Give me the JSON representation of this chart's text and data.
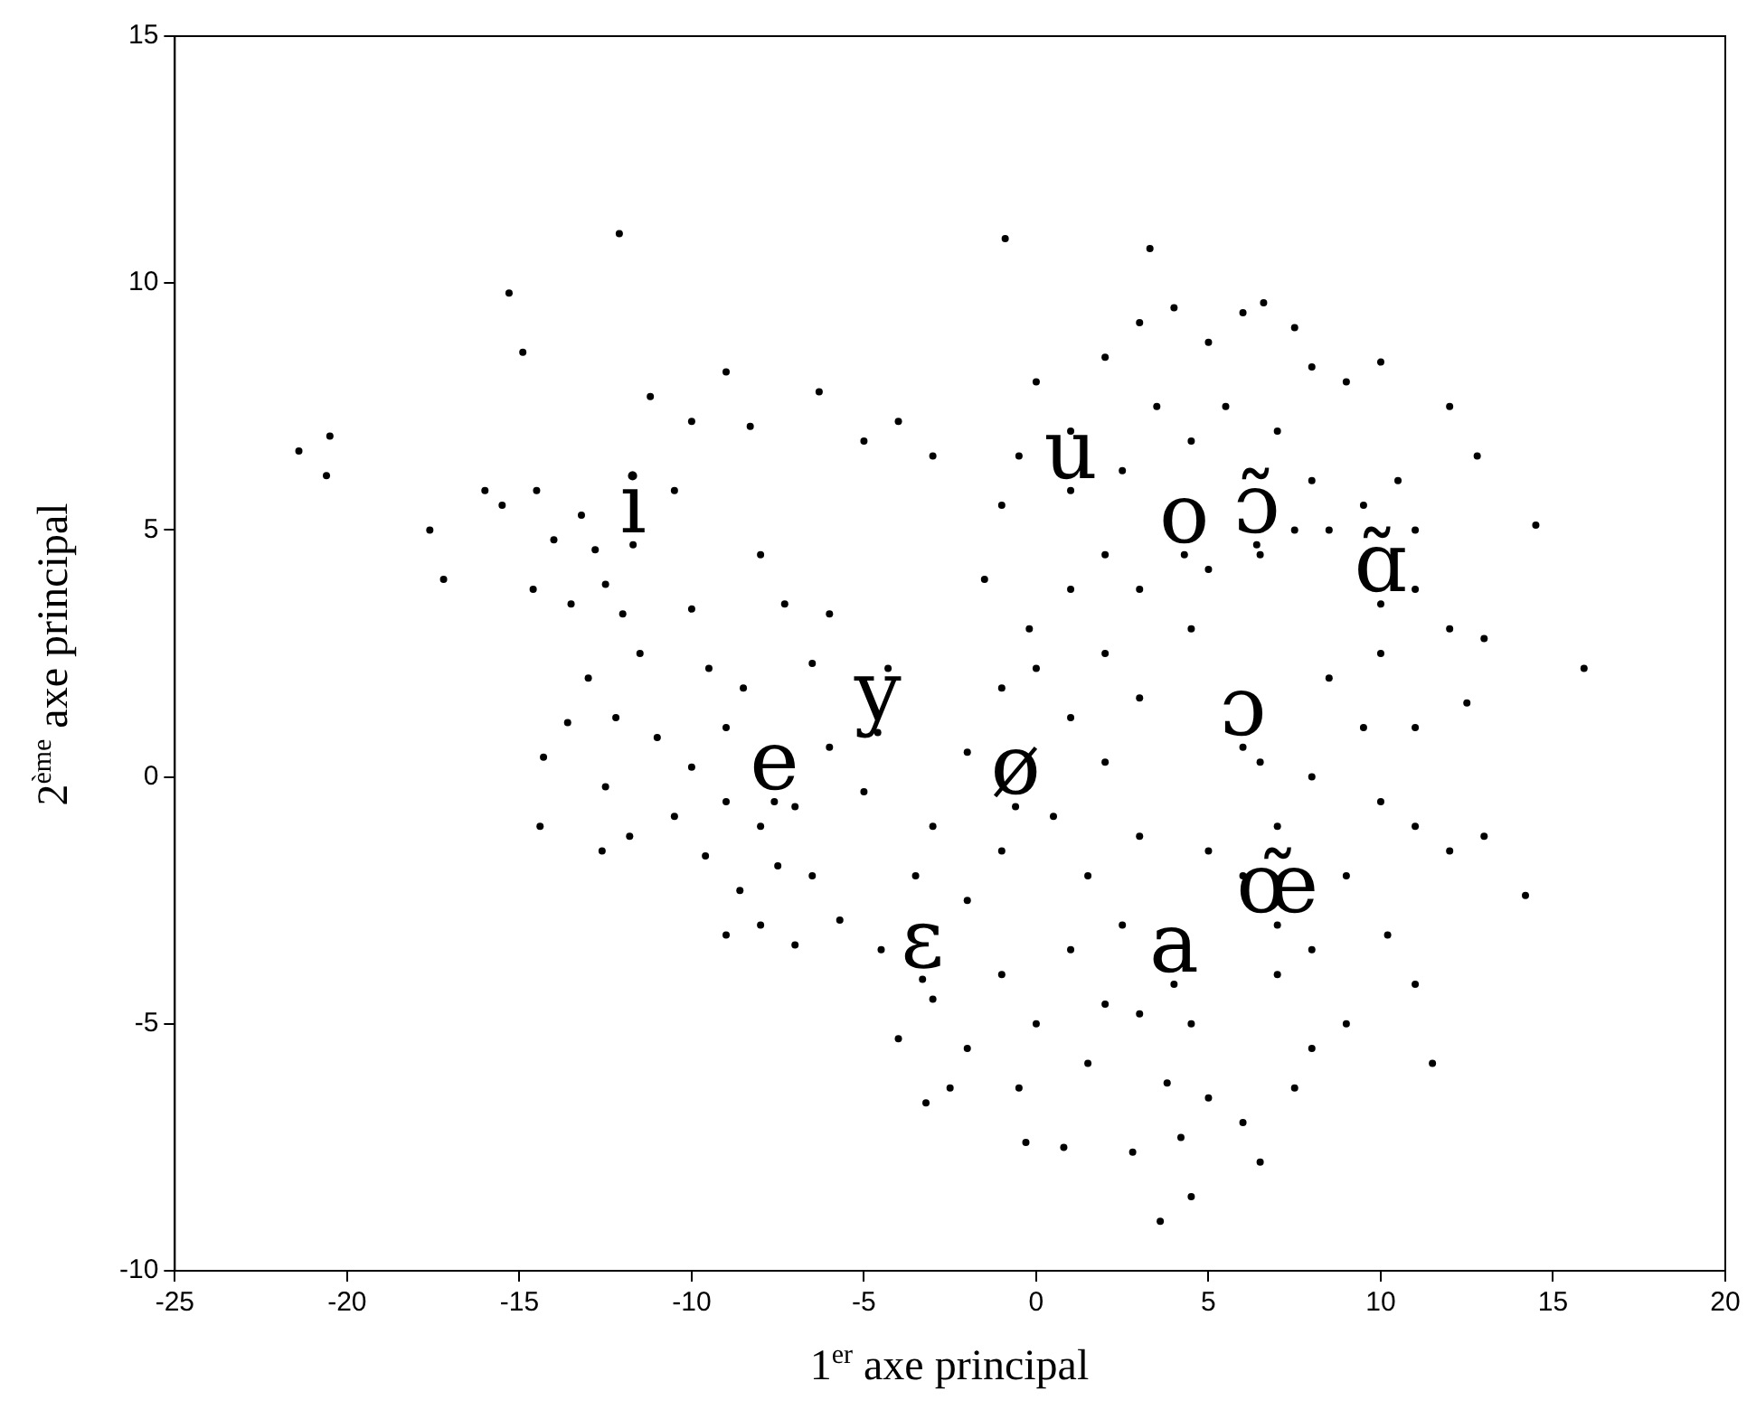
{
  "chart_data": {
    "type": "scatter",
    "xlabel": "1$^{er}$ axe principal",
    "ylabel": "2$^{ème}$ axe principal",
    "xlim": [
      -25,
      20
    ],
    "ylim": [
      -10,
      15
    ],
    "xticks": [
      -25,
      -20,
      -15,
      -10,
      -5,
      0,
      5,
      10,
      15,
      20
    ],
    "yticks": [
      -10,
      -5,
      0,
      5,
      10,
      15
    ],
    "grid": false,
    "legend": false,
    "marker": "circle",
    "series": [
      {
        "color": "#000000",
        "x": [
          -21.4,
          -20.5,
          -20.6,
          -17.6,
          -17.2,
          -12.1,
          -15.3,
          -14.9,
          -0.9,
          3.3,
          -14.4,
          -14.3,
          -16,
          -15.5,
          -14.5,
          -14,
          -13.2,
          -12.8,
          -12.5,
          -13.5,
          -14.6,
          -12,
          -11.5,
          -13,
          -12.2,
          -13.6,
          -11,
          -12.5,
          -11.8,
          -12.6,
          -10.5,
          -10,
          -11.2,
          -9,
          -8.3,
          -6.3,
          -5,
          -4,
          -3,
          -10,
          -9.5,
          -9,
          -8.5,
          -10,
          -9,
          -8,
          -7,
          -7.5,
          -8.6,
          -6.5,
          -9.6,
          -10.5,
          -6,
          -5,
          -6.5,
          -7.3,
          -8,
          -6,
          -4.3,
          -5.7,
          -7,
          -8,
          -9,
          -3,
          -2,
          -1,
          0,
          1,
          2,
          3,
          -3.5,
          -2,
          -1,
          0.5,
          1.5,
          3,
          -3,
          -2,
          -1,
          0,
          -0.5,
          1,
          2,
          -4,
          -2.5,
          1.5,
          2.5,
          3,
          3.8,
          4.2,
          2.8,
          0.8,
          -0.3,
          4.5,
          5,
          6,
          6.5,
          3.6,
          4.5,
          -4.5,
          -3.2,
          -1.5,
          -1,
          -0.5,
          0,
          1,
          2,
          3,
          4,
          5,
          6,
          6.6,
          7.5,
          8,
          9,
          10,
          2.5,
          3.5,
          4.5,
          5.5,
          7,
          8,
          7.5,
          2,
          3,
          4.5,
          5,
          6.5,
          1,
          -0.2,
          2,
          8.5,
          9.5,
          10.5,
          11,
          12,
          12.8,
          11,
          12,
          13,
          10,
          8.5,
          9.5,
          11,
          12.5,
          8,
          10,
          11,
          12,
          13,
          9,
          10.2,
          11,
          8,
          7,
          9,
          8,
          6,
          7,
          5,
          6.5,
          11.5,
          7.5,
          14.5,
          15.9,
          14.2
        ],
        "values": [
          6.6,
          6.9,
          6.1,
          5.0,
          4.0,
          11.0,
          9.8,
          8.6,
          10.9,
          10.7,
          -1.0,
          0.4,
          5.8,
          5.5,
          5.8,
          4.8,
          5.3,
          4.6,
          3.9,
          3.5,
          3.8,
          3.3,
          2.5,
          2.0,
          1.2,
          1.1,
          0.8,
          -0.2,
          -1.2,
          -1.5,
          5.8,
          7.2,
          7.7,
          8.2,
          7.1,
          7.8,
          6.8,
          7.2,
          6.5,
          3.4,
          2.2,
          1.0,
          1.8,
          0.2,
          -0.5,
          -1.0,
          -0.6,
          -1.8,
          -2.3,
          -2.0,
          -1.6,
          -0.8,
          0.6,
          -0.3,
          2.3,
          3.5,
          4.5,
          3.3,
          2.2,
          -2.9,
          -3.4,
          -3.0,
          -3.2,
          -1,
          0.5,
          1.8,
          2.2,
          1.2,
          0.3,
          1.6,
          -2.0,
          -2.5,
          -1.5,
          -0.8,
          -2,
          -1.2,
          -4.5,
          -5.5,
          -4,
          -5,
          -6.3,
          -3.5,
          -4.6,
          -5.3,
          -6.3,
          -5.8,
          -3,
          -4.8,
          -6.2,
          -7.3,
          -7.6,
          -7.5,
          -7.4,
          -5,
          -6.5,
          -7,
          -7.8,
          -9.0,
          -8.5,
          -3.5,
          -6.6,
          4,
          5.5,
          6.5,
          8,
          7,
          8.5,
          9.2,
          9.5,
          8.8,
          9.4,
          9.6,
          9.1,
          8.3,
          8,
          8.4,
          6.2,
          7.5,
          6.8,
          7.5,
          7,
          6,
          5,
          4.5,
          3.8,
          3,
          4.2,
          4.5,
          3.8,
          3.0,
          2.5,
          5,
          5.5,
          6,
          5,
          7.5,
          6.5,
          3.8,
          3,
          2.8,
          2.5,
          2.0,
          1,
          1.0,
          1.5,
          0,
          -0.5,
          -1,
          -1.5,
          -1.2,
          -2,
          -3.2,
          -4.2,
          -3.5,
          -4,
          -5,
          -5.5,
          -2,
          -1,
          -1.5,
          0.3,
          -5.8,
          -6.3,
          5.1,
          2.2,
          -2.4
        ]
      },
      {
        "color": "#000000",
        "marker": "circle",
        "x": [
          -11.7,
          1,
          4.3,
          6.4,
          10,
          -4.6,
          -7.6,
          -0.6,
          6,
          -3.3,
          4,
          7
        ],
        "values": [
          4.7,
          5.8,
          4.5,
          4.7,
          3.5,
          0.9,
          -0.5,
          -0.6,
          0.6,
          -4.1,
          -4.2,
          -3
        ],
        "value_labels": [
          "i",
          "u",
          "o",
          "ɔ̃",
          "ɑ̃",
          "y",
          "e",
          "ø",
          "ɔ",
          "ɛ",
          "a",
          "œ̃"
        ]
      }
    ]
  }
}
